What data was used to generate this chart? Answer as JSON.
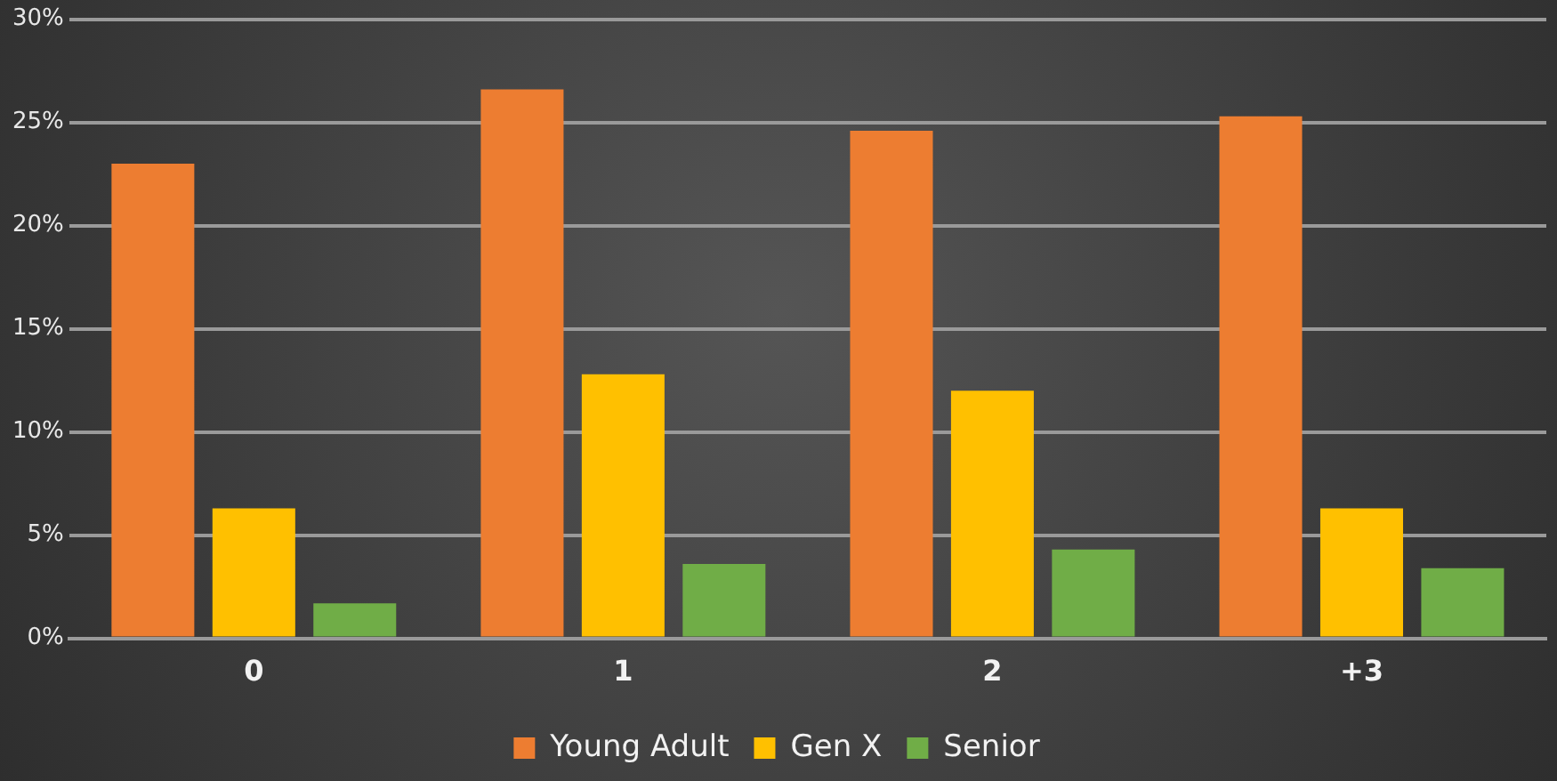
{
  "chart_data": {
    "type": "bar",
    "categories": [
      "0",
      "1",
      "2",
      "+3"
    ],
    "series": [
      {
        "name": "Young Adult",
        "color": "#ed7d31",
        "values": [
          23.0,
          26.6,
          24.6,
          25.3
        ]
      },
      {
        "name": "Gen X",
        "color": "#ffc000",
        "values": [
          6.3,
          12.8,
          12.0,
          6.3
        ]
      },
      {
        "name": "Senior",
        "color": "#70ad47",
        "values": [
          1.7,
          3.6,
          4.3,
          3.4
        ]
      }
    ],
    "ylim": [
      0,
      30
    ],
    "yticks": [
      {
        "value": 0,
        "label": "0%"
      },
      {
        "value": 5,
        "label": "5%"
      },
      {
        "value": 10,
        "label": "10%"
      },
      {
        "value": 15,
        "label": "15%"
      },
      {
        "value": 20,
        "label": "20%"
      },
      {
        "value": 25,
        "label": "25%"
      },
      {
        "value": 30,
        "label": "30%"
      }
    ],
    "grid": "y",
    "legend": "bottom"
  }
}
